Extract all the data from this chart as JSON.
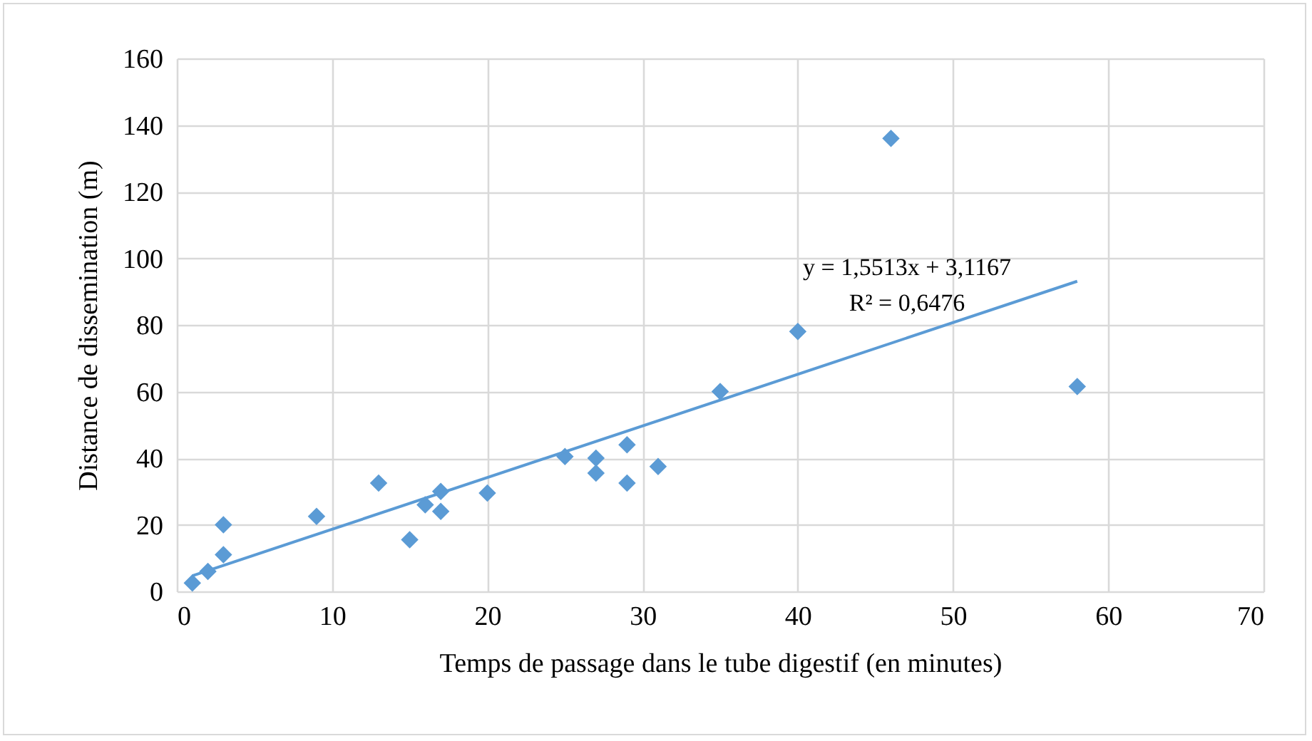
{
  "chart_data": {
    "type": "scatter",
    "xlabel": "Temps de passage dans le tube digestif  (en minutes)",
    "ylabel": "Distance de dissemination (m)",
    "annotations": [
      "y = 1,5513x + 3,1167",
      "R² = 0,6476"
    ],
    "series": [
      {
        "color": "#5b9bd5",
        "marker": "diamond",
        "x": [
          1,
          2,
          3,
          3,
          9,
          13,
          15,
          16,
          17,
          17,
          20,
          25,
          27,
          27,
          29,
          29,
          31,
          35,
          40,
          46,
          58
        ],
        "values": [
          2.5,
          6,
          11,
          20,
          22.5,
          32.5,
          15.5,
          26,
          30,
          24,
          29.5,
          40.5,
          40,
          35.5,
          44,
          32.5,
          37.5,
          60,
          78,
          136,
          61.5
        ]
      },
      {
        "type": "line",
        "color": "#5b9bd5",
        "marker": "none",
        "x": [
          1,
          58
        ],
        "values": [
          4.7,
          93.1
        ]
      }
    ],
    "xlim": [
      0,
      70
    ],
    "xticks": [
      0,
      10,
      20,
      30,
      40,
      50,
      60,
      70
    ],
    "ylim": [
      0,
      160
    ],
    "yticks": [
      0,
      20,
      40,
      60,
      80,
      100,
      120,
      140,
      160
    ],
    "grid": true
  }
}
